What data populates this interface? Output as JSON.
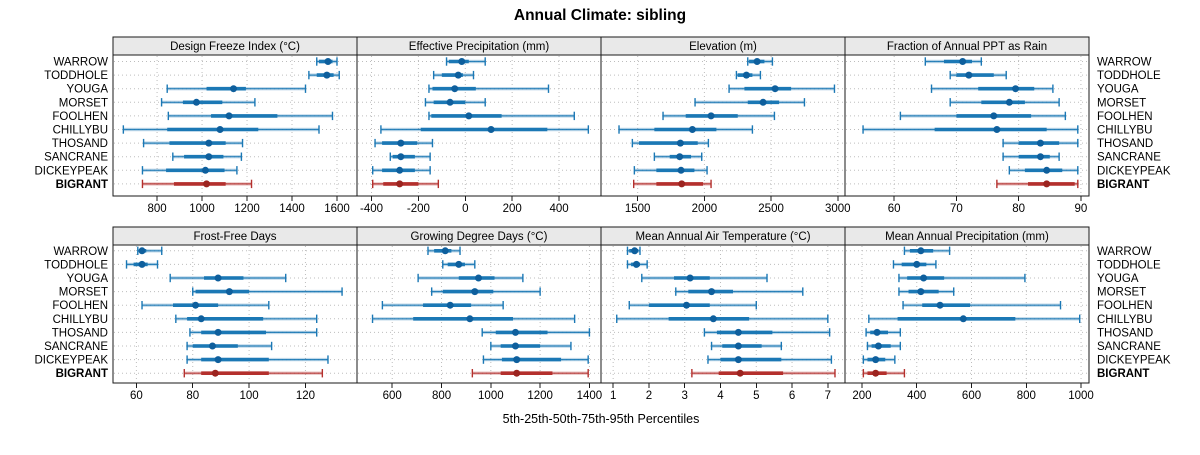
{
  "title": "Annual Climate: sibling",
  "caption": "5th-25th-50th-75th-95th Percentiles",
  "colors": {
    "blue": "#1b78b5",
    "blue_dot": "#0e5f9d",
    "red": "#b4302d",
    "red_dot": "#9c2420",
    "frame": "#1a1a1a",
    "grid": "#bdbdbd",
    "strip_fill": "#e9e9e9",
    "panel_fill": "#ffffff",
    "text": "#000000"
  },
  "chart_data": {
    "type": "dot-whisker-trellis",
    "title": "Annual Climate: sibling",
    "xlabel": "5th-25th-50th-75th-95th Percentiles",
    "grid": true,
    "percentiles": [
      5,
      25,
      50,
      75,
      95
    ],
    "sites": [
      "WARROW",
      "TODDHOLE",
      "YOUGA",
      "MORSET",
      "FOOLHEN",
      "CHILLYBU",
      "THOSAND",
      "SANCRANE",
      "DICKEYPEAK",
      "BIGRANT"
    ],
    "highlight_site": "BIGRANT",
    "panels": [
      {
        "label": "Design Freeze Index (°C)",
        "row": 0,
        "col": 0,
        "domain": [
          604,
          1689
        ],
        "ticks": [
          800,
          1000,
          1200,
          1400,
          1600
        ],
        "values": {
          "WARROW": [
            1510,
            1520,
            1560,
            1580,
            1600
          ],
          "TODDHOLE": [
            1475,
            1510,
            1555,
            1585,
            1610
          ],
          "YOUGA": [
            845,
            1020,
            1140,
            1195,
            1460
          ],
          "MORSET": [
            820,
            915,
            975,
            1090,
            1235
          ],
          "FOOLHEN": [
            850,
            1040,
            1120,
            1335,
            1580
          ],
          "CHILLYBU": [
            650,
            845,
            1080,
            1250,
            1520
          ],
          "THOSAND": [
            740,
            855,
            1030,
            1105,
            1180
          ],
          "SANCRANE": [
            870,
            920,
            1030,
            1095,
            1175
          ],
          "DICKEYPEAK": [
            735,
            840,
            1015,
            1100,
            1155
          ],
          "BIGRANT": [
            735,
            875,
            1020,
            1105,
            1220
          ]
        }
      },
      {
        "label": "Effective Precipitation (mm)",
        "row": 0,
        "col": 1,
        "domain": [
          -462,
          579
        ],
        "ticks": [
          -400,
          -200,
          0,
          200,
          400
        ],
        "values": {
          "WARROW": [
            -80,
            -70,
            -15,
            15,
            85
          ],
          "TODDHOLE": [
            -135,
            -100,
            -30,
            -10,
            35
          ],
          "YOUGA": [
            -155,
            -140,
            -45,
            45,
            355
          ],
          "MORSET": [
            -170,
            -135,
            -65,
            0,
            85
          ],
          "FOOLHEN": [
            -155,
            -145,
            15,
            155,
            465
          ],
          "CHILLYBU": [
            -360,
            -190,
            110,
            350,
            525
          ],
          "THOSAND": [
            -385,
            -355,
            -275,
            -205,
            -140
          ],
          "SANCRANE": [
            -320,
            -310,
            -275,
            -215,
            -150
          ],
          "DICKEYPEAK": [
            -395,
            -355,
            -280,
            -215,
            -150
          ],
          "BIGRANT": [
            -395,
            -350,
            -280,
            -200,
            -115
          ]
        }
      },
      {
        "label": "Elevation (m)",
        "row": 0,
        "col": 2,
        "domain": [
          1225,
          3054
        ],
        "ticks": [
          1500,
          2000,
          2500,
          3000
        ],
        "values": {
          "WARROW": [
            2325,
            2335,
            2395,
            2450,
            2510
          ],
          "TODDHOLE": [
            2240,
            2250,
            2315,
            2360,
            2420
          ],
          "YOUGA": [
            2185,
            2300,
            2530,
            2650,
            2975
          ],
          "MORSET": [
            1930,
            2325,
            2440,
            2560,
            2750
          ],
          "FOOLHEN": [
            1690,
            1860,
            2050,
            2250,
            2525
          ],
          "CHILLYBU": [
            1360,
            1625,
            1910,
            2090,
            2360
          ],
          "THOSAND": [
            1460,
            1510,
            1820,
            1950,
            2030
          ],
          "SANCRANE": [
            1625,
            1740,
            1815,
            1900,
            1980
          ],
          "DICKEYPEAK": [
            1475,
            1640,
            1825,
            1925,
            2020
          ],
          "BIGRANT": [
            1470,
            1640,
            1830,
            1990,
            2050
          ]
        }
      },
      {
        "label": "Fraction of Annual PPT as Rain",
        "row": 0,
        "col": 3,
        "domain": [
          52.1,
          91.3
        ],
        "ticks": [
          60,
          70,
          80,
          90
        ],
        "values": {
          "WARROW": [
            65,
            68,
            71,
            72.5,
            74
          ],
          "TODDHOLE": [
            69,
            70,
            72,
            76,
            78
          ],
          "YOUGA": [
            66,
            73.5,
            79.5,
            82.5,
            85.5
          ],
          "MORSET": [
            69,
            74,
            78.5,
            81,
            86.5
          ],
          "FOOLHEN": [
            61,
            70,
            76,
            82,
            87.5
          ],
          "CHILLYBU": [
            55,
            66.5,
            76.5,
            84.5,
            89.5
          ],
          "THOSAND": [
            77.5,
            80,
            83.5,
            86.5,
            89.5
          ],
          "SANCRANE": [
            77.5,
            80,
            83.5,
            85,
            86.5
          ],
          "DICKEYPEAK": [
            78.5,
            81,
            84.5,
            87,
            89.5
          ],
          "BIGRANT": [
            76.5,
            81.5,
            84.5,
            89,
            89.5
          ]
        }
      },
      {
        "label": "Frost-Free Days",
        "row": 1,
        "col": 0,
        "domain": [
          51.7,
          138.3
        ],
        "ticks": [
          60,
          80,
          100,
          120
        ],
        "values": {
          "WARROW": [
            60.5,
            61,
            62,
            63.5,
            69
          ],
          "TODDHOLE": [
            56.5,
            59,
            62,
            64,
            67.5
          ],
          "YOUGA": [
            72,
            84,
            89,
            98,
            113
          ],
          "MORSET": [
            80,
            81,
            93,
            100,
            133
          ],
          "FOOLHEN": [
            62,
            73,
            81,
            89,
            107
          ],
          "CHILLYBU": [
            74,
            78,
            83,
            105,
            124
          ],
          "THOSAND": [
            79,
            83,
            89,
            106,
            124
          ],
          "SANCRANE": [
            78,
            80,
            87,
            96,
            108
          ],
          "DICKEYPEAK": [
            78,
            83,
            89,
            107,
            128
          ],
          "BIGRANT": [
            77,
            83,
            88,
            107,
            126
          ]
        }
      },
      {
        "label": "Growing Degree Days (°C)",
        "row": 1,
        "col": 1,
        "domain": [
          457,
          1447
        ],
        "ticks": [
          600,
          800,
          1000,
          1200,
          1400
        ],
        "values": {
          "WARROW": [
            745,
            770,
            815,
            840,
            875
          ],
          "TODDHOLE": [
            805,
            825,
            870,
            895,
            935
          ],
          "YOUGA": [
            705,
            870,
            950,
            1015,
            1130
          ],
          "MORSET": [
            760,
            805,
            935,
            1010,
            1200
          ],
          "FOOLHEN": [
            560,
            725,
            835,
            920,
            1050
          ],
          "CHILLYBU": [
            520,
            685,
            915,
            1090,
            1340
          ],
          "THOSAND": [
            965,
            1020,
            1100,
            1230,
            1400
          ],
          "SANCRANE": [
            1000,
            1040,
            1100,
            1200,
            1325
          ],
          "DICKEYPEAK": [
            970,
            1045,
            1105,
            1285,
            1395
          ],
          "BIGRANT": [
            925,
            1040,
            1105,
            1250,
            1395
          ]
        }
      },
      {
        "label": "Mean Annual Air Temperature (°C)",
        "row": 1,
        "col": 2,
        "domain": [
          0.66,
          7.48
        ],
        "ticks": [
          1,
          2,
          3,
          4,
          5,
          6,
          7
        ],
        "values": {
          "WARROW": [
            1.4,
            1.45,
            1.6,
            1.7,
            1.75
          ],
          "TODDHOLE": [
            1.4,
            1.5,
            1.65,
            1.75,
            1.95
          ],
          "YOUGA": [
            1.8,
            2.7,
            3.15,
            3.7,
            5.3
          ],
          "MORSET": [
            2.75,
            3.1,
            3.75,
            4.35,
            6.3
          ],
          "FOOLHEN": [
            1.45,
            2.0,
            3.05,
            3.7,
            5.0
          ],
          "CHILLYBU": [
            1.1,
            2.55,
            3.8,
            4.8,
            7.0
          ],
          "THOSAND": [
            3.55,
            3.9,
            4.5,
            5.45,
            7.05
          ],
          "SANCRANE": [
            3.75,
            4.05,
            4.5,
            5.15,
            5.7
          ],
          "DICKEYPEAK": [
            3.65,
            4.0,
            4.5,
            5.7,
            7.1
          ],
          "BIGRANT": [
            3.2,
            3.95,
            4.55,
            5.75,
            7.2
          ]
        }
      },
      {
        "label": "Mean Annual Precipitation (mm)",
        "row": 1,
        "col": 3,
        "domain": [
          138,
          1029
        ],
        "ticks": [
          200,
          400,
          600,
          800,
          1000
        ],
        "values": {
          "WARROW": [
            355,
            375,
            415,
            460,
            520
          ],
          "TODDHOLE": [
            315,
            345,
            400,
            435,
            470
          ],
          "YOUGA": [
            335,
            365,
            425,
            500,
            795
          ],
          "MORSET": [
            335,
            370,
            415,
            480,
            535
          ],
          "FOOLHEN": [
            350,
            420,
            485,
            595,
            925
          ],
          "CHILLYBU": [
            225,
            330,
            570,
            760,
            995
          ],
          "THOSAND": [
            215,
            230,
            255,
            295,
            340
          ],
          "SANCRANE": [
            220,
            235,
            260,
            305,
            340
          ],
          "DICKEYPEAK": [
            205,
            220,
            250,
            285,
            320
          ],
          "BIGRANT": [
            205,
            220,
            250,
            290,
            355
          ]
        }
      }
    ]
  }
}
